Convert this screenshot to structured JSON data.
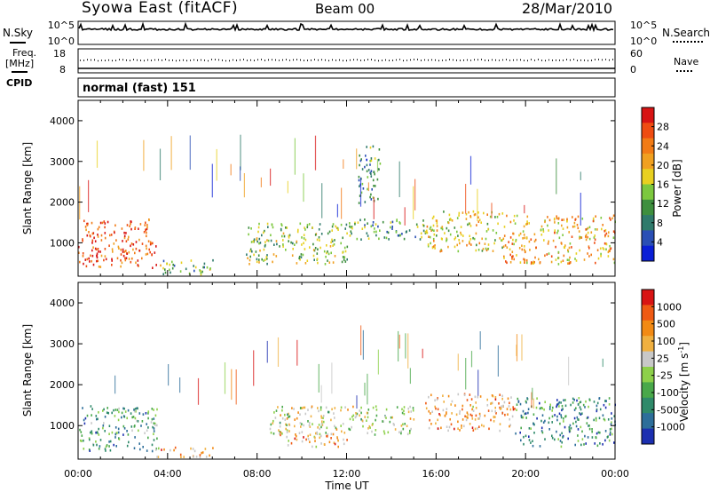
{
  "header": {
    "station": "Syowa East (fitACF)",
    "beam": "Beam 00",
    "date": "28/Mar/2010"
  },
  "strips": {
    "nsky_label": "N.Sky",
    "nsearch_label": "N.Search",
    "sky_ticks": [
      "10^5",
      "10^0"
    ],
    "search_ticks": [
      "10^5",
      "10^0"
    ],
    "freq_label": "Freq.",
    "freq_unit": "[MHz]",
    "freq_ticks": [
      "18",
      "8"
    ],
    "nave_label": "Nave",
    "nave_ticks": [
      "60",
      "0"
    ],
    "cpid_label": "CPID",
    "cpid_value": "normal (fast) 151"
  },
  "chart_data": [
    {
      "type": "heatmap",
      "panel": "power",
      "ylabel": "Slant Range [km]",
      "xlabel": "",
      "ylim": [
        180,
        4500
      ],
      "y_ticks": [
        "1000",
        "2000",
        "3000",
        "4000"
      ],
      "x_ticks": [
        "00:00",
        "04:00",
        "08:00",
        "12:00",
        "16:00",
        "20:00",
        "00:00"
      ],
      "x_range_hours": [
        0,
        24
      ],
      "colorbar": {
        "label": "Power [dB]",
        "ticks": [
          "4",
          "8",
          "12",
          "16",
          "20",
          "24",
          "28"
        ],
        "colors": [
          "#0a1fd6",
          "#2a4fb5",
          "#2f7a6b",
          "#3e8f3e",
          "#7cc83e",
          "#e8d020",
          "#f0a020",
          "#f27b16",
          "#ef4c12",
          "#d81414"
        ]
      },
      "regions": [
        {
          "t0": 0.0,
          "t1": 3.5,
          "r0": 400,
          "r1": 1600,
          "level": 0.85
        },
        {
          "t0": 3.5,
          "t1": 6.0,
          "r0": 250,
          "r1": 600,
          "level": 0.4
        },
        {
          "t0": 7.5,
          "t1": 12.0,
          "r0": 500,
          "r1": 1500,
          "level": 0.45
        },
        {
          "t0": 12.0,
          "t1": 15.5,
          "r0": 1100,
          "r1": 1600,
          "level": 0.35
        },
        {
          "t0": 15.5,
          "t1": 19.0,
          "r0": 800,
          "r1": 1800,
          "level": 0.55
        },
        {
          "t0": 19.0,
          "t1": 24.0,
          "r0": 500,
          "r1": 1700,
          "level": 0.65
        },
        {
          "t0": 12.5,
          "t1": 13.5,
          "r0": 2000,
          "r1": 3400,
          "level": 0.3
        }
      ]
    },
    {
      "type": "heatmap",
      "panel": "velocity",
      "ylabel": "Slant Range [km]",
      "xlabel": "Time UT",
      "ylim": [
        180,
        4500
      ],
      "y_ticks": [
        "1000",
        "2000",
        "3000",
        "4000"
      ],
      "x_ticks": [
        "00:00",
        "04:00",
        "08:00",
        "12:00",
        "16:00",
        "20:00",
        "00:00"
      ],
      "x_range_hours": [
        0,
        24
      ],
      "colorbar": {
        "label": "Velocity [m s",
        "label_sup": "-1",
        "label_end": "]",
        "ticks": [
          "1000",
          "500",
          "100",
          "25",
          "-25",
          "-100",
          "-500",
          "-1000"
        ],
        "colors": [
          "#1c2fb0",
          "#2d6e9a",
          "#2f8a6a",
          "#49a84a",
          "#8dd04a",
          "#c8c8c8",
          "#f0b040",
          "#f28a14",
          "#ef5a14",
          "#d81414"
        ]
      },
      "regions": [
        {
          "t0": 0.0,
          "t1": 3.5,
          "r0": 400,
          "r1": 1500,
          "level": 0.3
        },
        {
          "t0": 3.5,
          "t1": 6.0,
          "r0": 250,
          "r1": 500,
          "level": 0.7
        },
        {
          "t0": 8.5,
          "t1": 15.0,
          "r0": 800,
          "r1": 1500,
          "level": 0.5
        },
        {
          "t0": 9.0,
          "t1": 12.0,
          "r0": 500,
          "r1": 900,
          "level": 0.7
        },
        {
          "t0": 15.5,
          "t1": 19.5,
          "r0": 900,
          "r1": 1800,
          "level": 0.72
        },
        {
          "t0": 19.5,
          "t1": 24.0,
          "r0": 500,
          "r1": 1700,
          "level": 0.25
        }
      ]
    }
  ]
}
